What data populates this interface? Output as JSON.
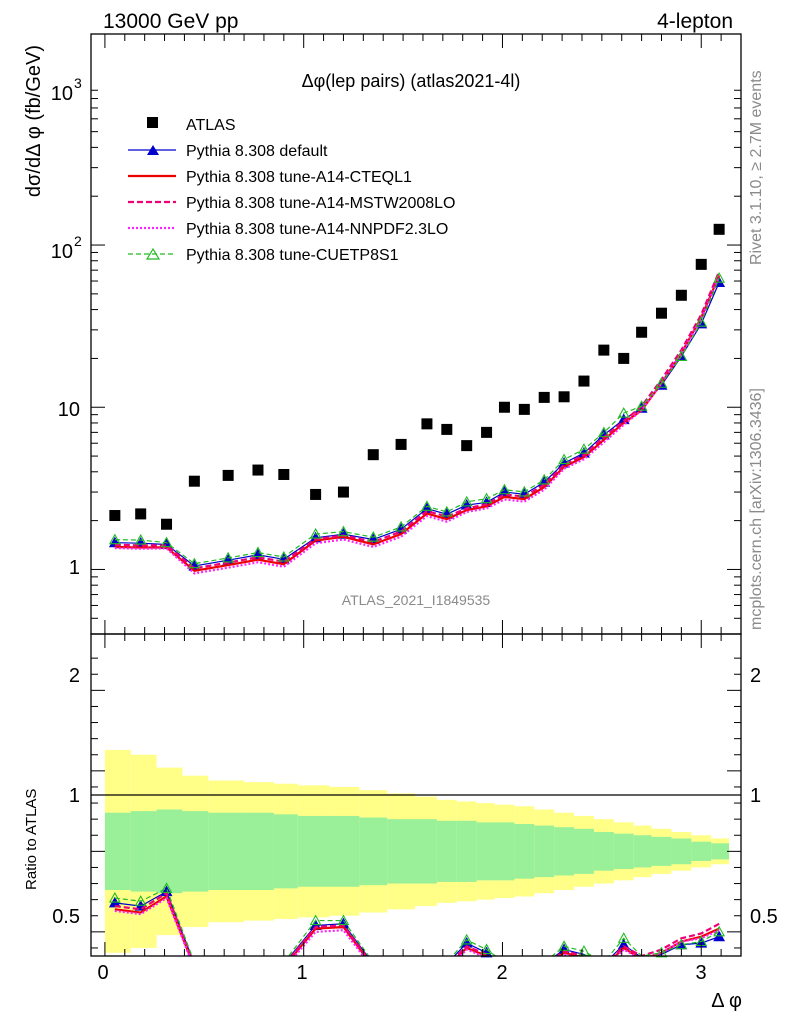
{
  "header": {
    "left": "13000 GeV pp",
    "right": "4-lepton"
  },
  "side_text": {
    "rivet": "Rivet 3.1.10, ≥ 2.7M events",
    "mcplots": "mcplots.cern.ch [arXiv:1306.3436]"
  },
  "main_title": "Δφ(lep pairs) (atlas2021-4l)",
  "watermark": "ATLAS_2021_I1849535",
  "ylabel_top": "dσ/dΔ φ (fb/GeV)",
  "ylabel_bottom": "Ratio to ATLAS",
  "xlabel": "Δ φ",
  "top_ticks": [
    "1",
    "10",
    "10",
    "2",
    "10",
    "3"
  ],
  "top_tick_labels": {
    "t1": "1",
    "t10": "10",
    "t100_base": "10",
    "t100_exp": "2",
    "t1000_base": "10",
    "t1000_exp": "3"
  },
  "ratio_tick_labels": {
    "r05": "0.5",
    "r1": "1",
    "r2": "2"
  },
  "x_tick_labels": {
    "x0": "0",
    "x1": "1",
    "x2": "2",
    "x3": "3"
  },
  "legend": {
    "atlas": "ATLAS",
    "default": "Pythia 8.308 default",
    "cteql1": "Pythia 8.308 tune-A14-CTEQL1",
    "mstw": "Pythia 8.308 tune-A14-MSTW2008LO",
    "nnpdf": "Pythia 8.308 tune-A14-NNPDF2.3LO",
    "cuetp": "Pythia 8.308 tune-CUETP8S1"
  },
  "chart_data": {
    "type": "scatter",
    "x": [
      0.05,
      0.18,
      0.31,
      0.45,
      0.62,
      0.77,
      0.9,
      1.06,
      1.2,
      1.35,
      1.49,
      1.62,
      1.72,
      1.82,
      1.92,
      2.01,
      2.11,
      2.21,
      2.31,
      2.41,
      2.51,
      2.61,
      2.7,
      2.8,
      2.9,
      3.0,
      3.09
    ],
    "x_edges": [
      0.0,
      0.13,
      0.26,
      0.39,
      0.52,
      0.7,
      0.85,
      0.97,
      1.13,
      1.28,
      1.42,
      1.56,
      1.67,
      1.77,
      1.87,
      1.96,
      2.06,
      2.16,
      2.26,
      2.36,
      2.46,
      2.56,
      2.66,
      2.75,
      2.85,
      2.95,
      3.05,
      3.14
    ],
    "xlim": [
      -0.07,
      3.2
    ],
    "ylim_top": [
      0.4,
      2000
    ],
    "ylim_ratio": [
      0.35,
      2.35
    ],
    "yscale_top": "log",
    "series": [
      {
        "name": "ATLAS",
        "color": "#000000",
        "values": [
          2.15,
          2.2,
          1.9,
          3.5,
          3.8,
          4.1,
          3.85,
          2.9,
          3.0,
          5.1,
          5.9,
          7.9,
          7.3,
          5.8,
          7.0,
          10.0,
          9.7,
          11.5,
          11.6,
          14.5,
          22.5,
          20.0,
          29.0,
          38.0,
          49.0,
          76.0,
          125.0
        ],
        "stat_band": [
          0.24,
          0.25,
          0.26,
          0.25,
          0.24,
          0.24,
          0.23,
          0.22,
          0.22,
          0.21,
          0.2,
          0.2,
          0.19,
          0.19,
          0.18,
          0.18,
          0.17,
          0.16,
          0.15,
          0.14,
          0.12,
          0.11,
          0.1,
          0.09,
          0.08,
          0.06,
          0.05
        ],
        "total_band": [
          0.63,
          0.6,
          0.52,
          0.47,
          0.44,
          0.43,
          0.42,
          0.41,
          0.4,
          0.38,
          0.36,
          0.34,
          0.32,
          0.31,
          0.3,
          0.29,
          0.28,
          0.26,
          0.24,
          0.22,
          0.2,
          0.18,
          0.16,
          0.14,
          0.12,
          0.1,
          0.08
        ]
      },
      {
        "name": "Pythia 8.308 default",
        "color": "#0000cc",
        "ratio": [
          0.68,
          0.66,
          0.75,
          0.3,
          0.3,
          0.3,
          0.3,
          0.54,
          0.55,
          0.3,
          0.3,
          0.3,
          0.3,
          0.43,
          0.37,
          0.3,
          0.3,
          0.3,
          0.39,
          0.36,
          0.3,
          0.42,
          0.34,
          0.36,
          0.42,
          0.43,
          0.47
        ]
      },
      {
        "name": "Pythia 8.308 tune-A14-CTEQL1",
        "color": "#ee0000",
        "ratio": [
          0.64,
          0.62,
          0.72,
          0.28,
          0.28,
          0.28,
          0.28,
          0.52,
          0.53,
          0.28,
          0.28,
          0.28,
          0.28,
          0.4,
          0.35,
          0.28,
          0.28,
          0.28,
          0.37,
          0.34,
          0.28,
          0.4,
          0.33,
          0.37,
          0.44,
          0.47,
          0.52
        ]
      },
      {
        "name": "Pythia 8.308 tune-A14-MSTW2008LO",
        "color": "#ee0077",
        "ratio": [
          0.66,
          0.64,
          0.74,
          0.29,
          0.29,
          0.29,
          0.29,
          0.53,
          0.54,
          0.29,
          0.29,
          0.29,
          0.29,
          0.41,
          0.36,
          0.29,
          0.29,
          0.29,
          0.38,
          0.35,
          0.29,
          0.41,
          0.35,
          0.39,
          0.46,
          0.49,
          0.55
        ]
      },
      {
        "name": "Pythia 8.308 tune-A14-NNPDF2.3LO",
        "color": "#ff22ff",
        "ratio": [
          0.63,
          0.61,
          0.71,
          0.27,
          0.27,
          0.27,
          0.27,
          0.5,
          0.51,
          0.27,
          0.27,
          0.27,
          0.27,
          0.39,
          0.34,
          0.27,
          0.27,
          0.27,
          0.36,
          0.33,
          0.27,
          0.39,
          0.33,
          0.37,
          0.44,
          0.46,
          0.51
        ]
      },
      {
        "name": "Pythia 8.308 tune-CUETP8S1",
        "color": "#22bb22",
        "ratio": [
          0.71,
          0.69,
          0.77,
          0.31,
          0.31,
          0.31,
          0.31,
          0.57,
          0.57,
          0.31,
          0.31,
          0.31,
          0.31,
          0.45,
          0.39,
          0.31,
          0.31,
          0.31,
          0.41,
          0.38,
          0.31,
          0.46,
          0.35,
          0.37,
          0.42,
          0.44,
          0.5
        ]
      }
    ]
  }
}
